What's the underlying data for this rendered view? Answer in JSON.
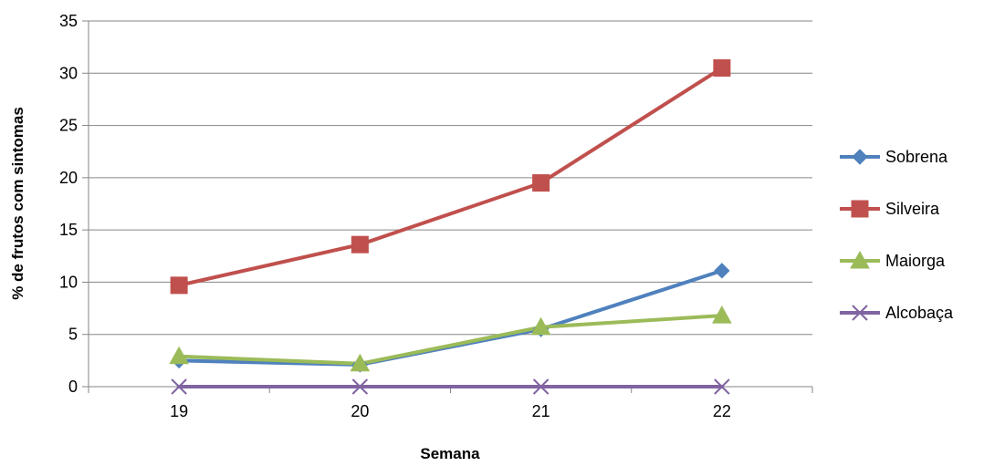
{
  "chart_data": {
    "type": "line",
    "title": "",
    "xlabel": "Semana",
    "ylabel": "% de frutos com sintomas",
    "categories": [
      "19",
      "20",
      "21",
      "22"
    ],
    "ylim": [
      0,
      35
    ],
    "yticks": [
      "0",
      "5",
      "10",
      "15",
      "20",
      "25",
      "30",
      "35"
    ],
    "grid": true,
    "legend_position": "right",
    "series": [
      {
        "name": "Sobrena",
        "values": [
          2.5,
          2.1,
          5.5,
          11.1
        ],
        "color": "#4F81BD",
        "marker": "diamond"
      },
      {
        "name": "Silveira",
        "values": [
          9.7,
          13.6,
          19.5,
          30.5
        ],
        "color": "#C0504D",
        "marker": "square"
      },
      {
        "name": "Maiorga",
        "values": [
          2.9,
          2.2,
          5.7,
          6.8
        ],
        "color": "#9BBB59",
        "marker": "triangle"
      },
      {
        "name": "Alcobaça",
        "values": [
          0,
          0,
          0,
          0
        ],
        "color": "#8064A2",
        "marker": "x"
      }
    ]
  }
}
